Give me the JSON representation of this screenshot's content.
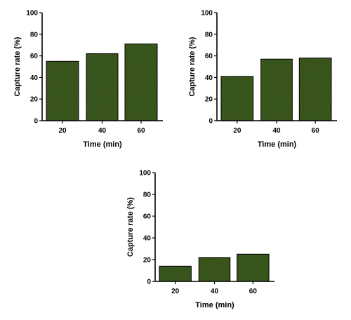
{
  "colors": {
    "bar_fill": "#3f5f1f",
    "hatch": "#1d2a10",
    "axis": "#000000"
  },
  "chart_data": [
    {
      "type": "bar",
      "categories": [
        "20",
        "40",
        "60"
      ],
      "values": [
        55,
        62,
        71
      ],
      "xlabel": "Time (min)",
      "ylabel": "Capture rate (%)",
      "ylim": [
        0,
        100
      ],
      "yticks": [
        "0",
        "20",
        "40",
        "60",
        "80",
        "100"
      ]
    },
    {
      "type": "bar",
      "categories": [
        "20",
        "40",
        "60"
      ],
      "values": [
        41,
        57,
        58
      ],
      "xlabel": "Time (min)",
      "ylabel": "Capture rate (%)",
      "ylim": [
        0,
        100
      ],
      "yticks": [
        "0",
        "20",
        "40",
        "60",
        "80",
        "100"
      ]
    },
    {
      "type": "bar",
      "categories": [
        "20",
        "40",
        "60"
      ],
      "values": [
        14,
        22,
        25
      ],
      "xlabel": "Time (min)",
      "ylabel": "Capture rate (%)",
      "ylim": [
        0,
        100
      ],
      "yticks": [
        "0",
        "20",
        "40",
        "60",
        "80",
        "100"
      ]
    }
  ]
}
